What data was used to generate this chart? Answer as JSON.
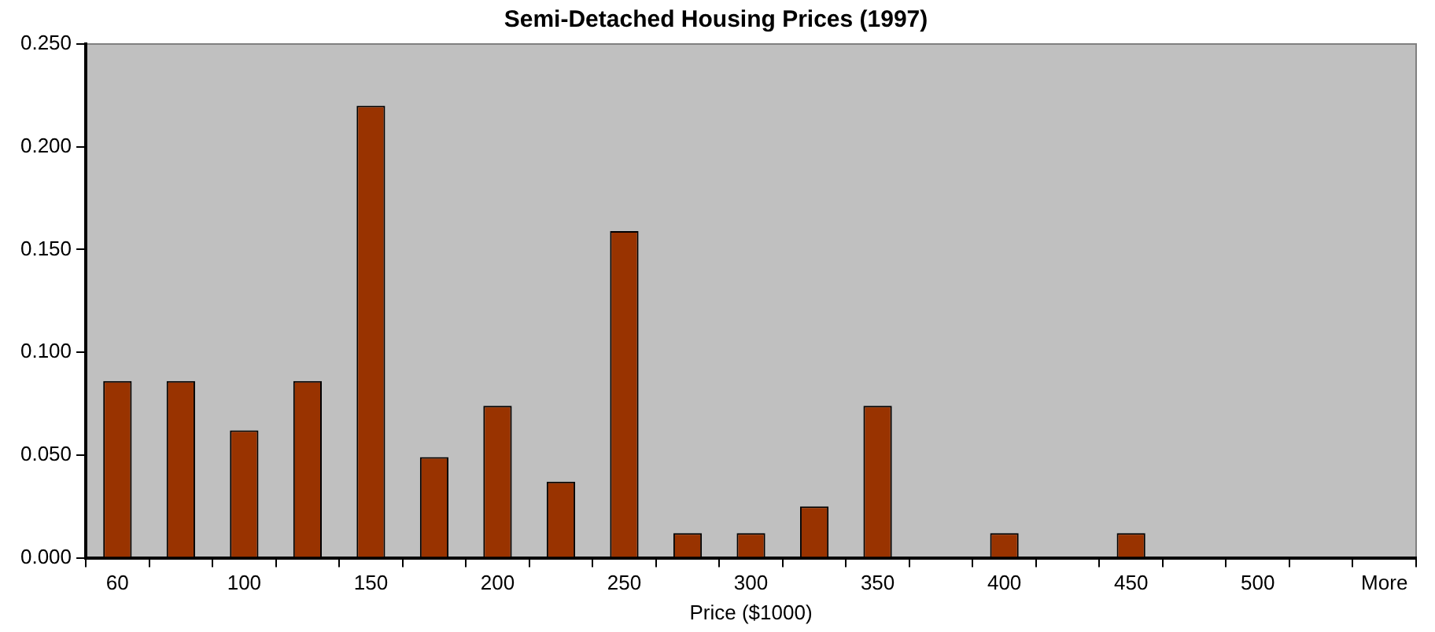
{
  "chart_data": {
    "type": "bar",
    "title": "Semi-Detached Housing Prices (1997)",
    "xlabel": "Price ($1000)",
    "categories": [
      "60",
      null,
      "100",
      null,
      "150",
      null,
      "200",
      null,
      "250",
      null,
      "300",
      null,
      "350",
      null,
      "400",
      null,
      "450",
      null,
      "500",
      null,
      "More"
    ],
    "values": [
      0.086,
      0.086,
      0.062,
      0.086,
      0.22,
      0.049,
      0.074,
      0.037,
      0.159,
      0.012,
      0.012,
      0.025,
      0.074,
      0,
      0.012,
      0,
      0.012,
      0,
      0,
      0,
      0
    ],
    "color": "#993300",
    "ylim": [
      0,
      0.25
    ],
    "yticks": [
      {
        "value": 0,
        "label": "0.000"
      },
      {
        "value": 0.05,
        "label": "0.050"
      },
      {
        "value": 0.1,
        "label": "0.100"
      },
      {
        "value": 0.15,
        "label": "0.150"
      },
      {
        "value": 0.2,
        "label": "0.200"
      },
      {
        "value": 0.25,
        "label": "0.250"
      }
    ],
    "grid": false,
    "legend": false
  }
}
